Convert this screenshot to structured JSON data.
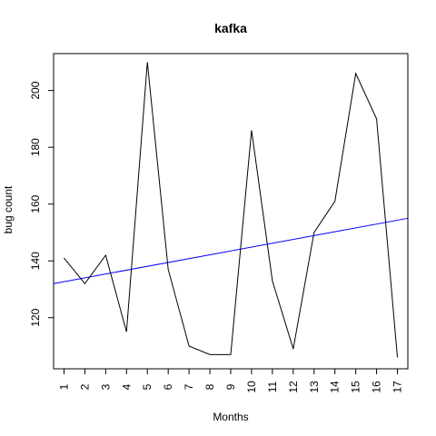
{
  "chart_data": {
    "type": "line",
    "title": "kafka",
    "xlabel": "Months",
    "ylabel": "bug count",
    "x": [
      1,
      2,
      3,
      4,
      5,
      6,
      7,
      8,
      9,
      10,
      11,
      12,
      13,
      14,
      15,
      16,
      17
    ],
    "xlim": [
      0.5,
      17.5
    ],
    "ylim": [
      102,
      213
    ],
    "yticks": [
      120,
      140,
      160,
      180,
      200
    ],
    "grid": false,
    "legend": "none",
    "series": [
      {
        "values": [
          141,
          132,
          142,
          115,
          210,
          137,
          110,
          107,
          107,
          186,
          133,
          109,
          150,
          161,
          206,
          190,
          106
        ],
        "color": "#000000"
      }
    ],
    "trendline": {
      "color": "#0000ff",
      "y_at_xlim": [
        132,
        155
      ]
    }
  }
}
